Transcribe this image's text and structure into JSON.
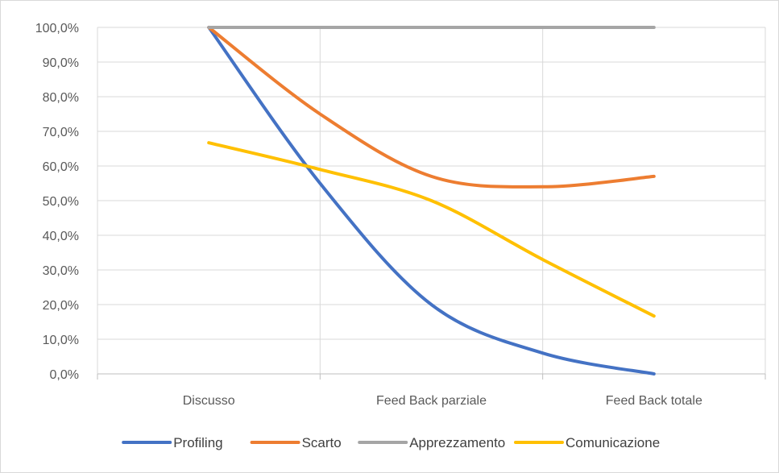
{
  "chart_data": {
    "type": "line",
    "title": "",
    "xlabel": "",
    "ylabel": "",
    "categories": [
      "Discusso",
      "Feed Back parziale",
      "Feed Back totale"
    ],
    "x": [
      1,
      1.5,
      2,
      2.5,
      3
    ],
    "series": [
      {
        "name": "Profiling",
        "color": "#4472c4",
        "values": [
          100,
          55,
          20,
          6,
          0
        ]
      },
      {
        "name": "Scarto",
        "color": "#ed7d31",
        "values": [
          100,
          75,
          57,
          54,
          57
        ]
      },
      {
        "name": "Apprezzamento",
        "color": "#a5a5a5",
        "values": [
          100,
          100,
          100,
          100,
          100
        ]
      },
      {
        "name": "Comunicazione",
        "color": "#ffc000",
        "values": [
          66.7,
          59,
          50,
          33,
          16.7
        ]
      }
    ],
    "ylim": [
      0,
      100
    ],
    "yticks": [
      0,
      10,
      20,
      30,
      40,
      50,
      60,
      70,
      80,
      90,
      100
    ],
    "ytick_labels": [
      "0,0%",
      "10,0%",
      "20,0%",
      "30,0%",
      "40,0%",
      "50,0%",
      "60,0%",
      "70,0%",
      "80,0%",
      "90,0%",
      "100,0%"
    ],
    "grid": true,
    "smooth": true,
    "legend_position": "bottom"
  }
}
